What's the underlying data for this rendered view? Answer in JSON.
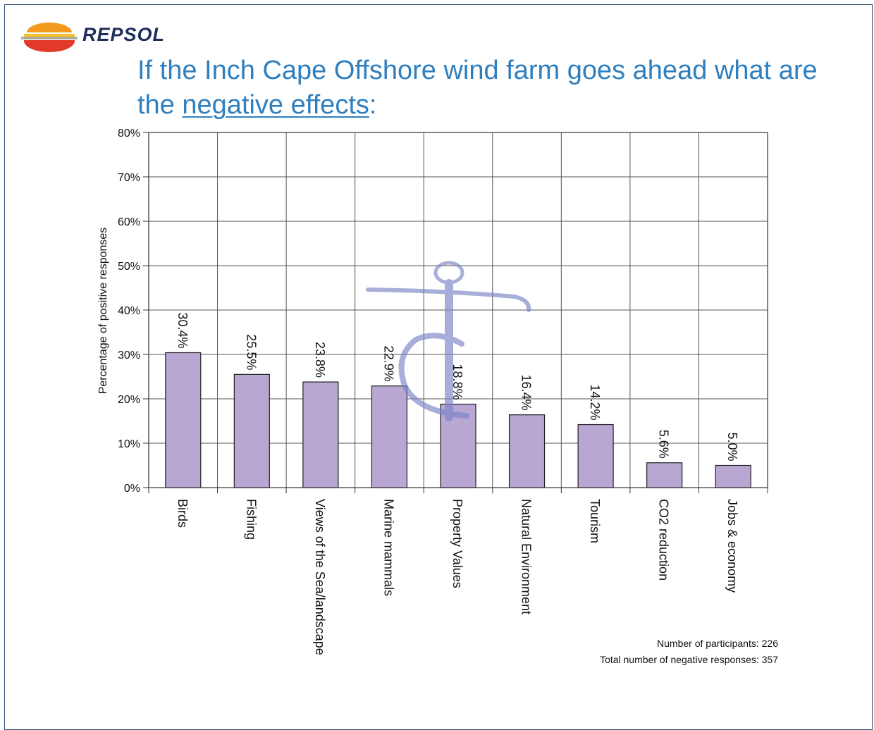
{
  "header": {
    "logo_text": "REPSOL",
    "title_part1": "If the Inch Cape Offshore wind farm goes ahead what are the ",
    "title_emphasis": "negative effects",
    "title_part2": ":"
  },
  "chart_data": {
    "type": "bar",
    "categories": [
      "Birds",
      "Fishing",
      "Views of the Sea/landscape",
      "Marine mammals",
      "Property Values",
      "Natural Environment",
      "Tourism",
      "CO2 reduction",
      "Jobs & economy"
    ],
    "values": [
      30.4,
      25.5,
      23.8,
      22.9,
      18.8,
      16.4,
      14.2,
      5.6,
      5.0
    ],
    "data_labels": [
      "30.4%",
      "25.5%",
      "23.8%",
      "22.9%",
      "18.8%",
      "16.4%",
      "14.2%",
      "5.6%",
      "5.0%"
    ],
    "ylabel": "Percentage of positive responses",
    "xlabel": "",
    "ylim": [
      0,
      80
    ],
    "yticks": [
      0,
      10,
      20,
      30,
      40,
      50,
      60,
      70,
      80
    ],
    "ytick_labels": [
      "0%",
      "10%",
      "20%",
      "30%",
      "40%",
      "50%",
      "60%",
      "70%",
      "80%"
    ],
    "grid": true,
    "bar_color": "#b8a6d3",
    "bar_edge_color": "#222222"
  },
  "notes": {
    "participants": "Number of participants: 226",
    "responses": "Total number of negative responses: 357"
  },
  "colors": {
    "title": "#2f7fbf",
    "logo_text": "#1f2f5c",
    "watermark": "#7b84c7"
  }
}
